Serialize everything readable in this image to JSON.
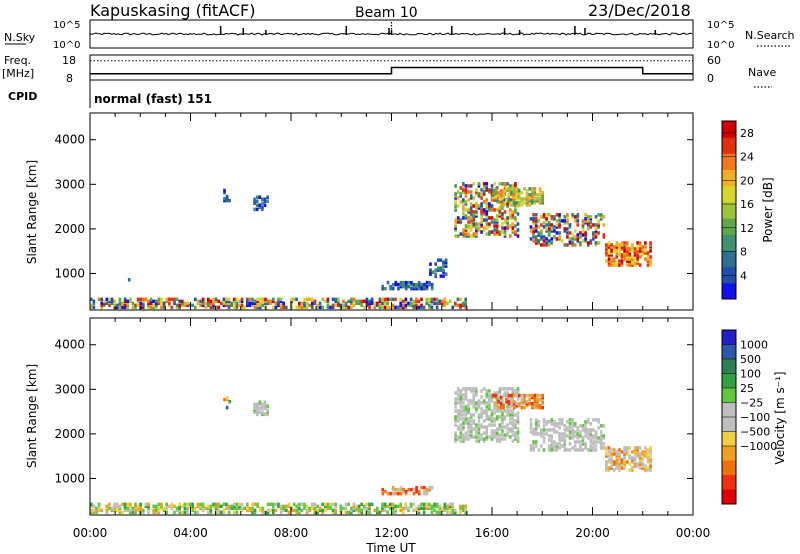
{
  "header": {
    "station": "Kapuskasing (fitACF)",
    "beam": "Beam 10",
    "date": "23/Dec/2018"
  },
  "status_panels": {
    "nsky_label": "N.Sky",
    "nsky_ticks": [
      "10^5",
      "10^0"
    ],
    "nsearch_label": "N.Search",
    "nsearch_ticks": [
      "10^5",
      "10^0"
    ],
    "freq_label": "Freq.",
    "freq_unit": "[MHz]",
    "freq_ticks": [
      "18",
      "8"
    ],
    "nave_label": "Nave",
    "nave_ticks": [
      "60",
      "0"
    ],
    "cpid_label": "CPID",
    "cpid_value": "normal (fast) 151",
    "freq_step_times_h": [
      0,
      12,
      22,
      24
    ],
    "freq_levels_mhz": [
      10.5,
      13,
      10.5
    ],
    "nave_dotted_level": 46,
    "nsky_spike_times_h": [
      5.2,
      6.1,
      7.0,
      10.2,
      11.9,
      12.0,
      14.4,
      16.5,
      17.1,
      19.3,
      19.7,
      22.5
    ]
  },
  "chart_data": [
    {
      "type": "heatmap",
      "name": "power",
      "xlabel": "Time UT",
      "ylabel": "Slant Range [km]",
      "x_ticks": [
        "00:00",
        "04:00",
        "08:00",
        "12:00",
        "16:00",
        "20:00",
        "00:00"
      ],
      "xlim_h": [
        0,
        24
      ],
      "y_ticks": [
        1000,
        2000,
        3000,
        4000
      ],
      "ylim_km": [
        180,
        4600
      ],
      "colorbar_label": "Power [dB]",
      "colorbar_ticks": [
        "4",
        "8",
        "12",
        "16",
        "20",
        "24",
        "28"
      ],
      "colorbar_range": [
        0,
        30
      ],
      "colors": [
        "#1010e8",
        "#1f4fa8",
        "#2f6f8f",
        "#3f8f70",
        "#5fa84a",
        "#9fc43a",
        "#d8d62a",
        "#f0b020",
        "#f07818",
        "#e03010",
        "#d00000"
      ],
      "echo_regions": [
        {
          "t": [
            0,
            15
          ],
          "r": [
            200,
            420
          ],
          "level": "mixed",
          "density": 0.55
        },
        {
          "t": [
            1.3,
            1.6
          ],
          "r": [
            820,
            900
          ],
          "level": "low",
          "density": 0.5
        },
        {
          "t": [
            11.6,
            13.6
          ],
          "r": [
            620,
            760
          ],
          "level": "low",
          "density": 0.5
        },
        {
          "t": [
            13.5,
            14.2
          ],
          "r": [
            900,
            1300
          ],
          "level": "low",
          "density": 0.4
        },
        {
          "t": [
            5.3,
            5.6
          ],
          "r": [
            2550,
            2850
          ],
          "level": "low",
          "density": 0.5
        },
        {
          "t": [
            6.5,
            7.1
          ],
          "r": [
            2400,
            2700
          ],
          "level": "low",
          "density": 0.5
        },
        {
          "t": [
            14.5,
            17.0
          ],
          "r": [
            1800,
            3000
          ],
          "level": "mixed",
          "density": 0.45
        },
        {
          "t": [
            16.0,
            18.0
          ],
          "r": [
            2500,
            2900
          ],
          "level": "mid",
          "density": 0.55
        },
        {
          "t": [
            17.5,
            20.5
          ],
          "r": [
            1600,
            2300
          ],
          "level": "mixed",
          "density": 0.4
        },
        {
          "t": [
            20.5,
            22.3
          ],
          "r": [
            1150,
            1650
          ],
          "level": "high",
          "density": 0.65
        }
      ]
    },
    {
      "type": "heatmap",
      "name": "velocity",
      "xlabel": "Time UT",
      "ylabel": "Slant Range [km]",
      "x_ticks": [
        "00:00",
        "04:00",
        "08:00",
        "12:00",
        "16:00",
        "20:00",
        "00:00"
      ],
      "xlim_h": [
        0,
        24
      ],
      "y_ticks": [
        1000,
        2000,
        3000,
        4000
      ],
      "ylim_km": [
        180,
        4600
      ],
      "colorbar_label": "Velocity [m s⁻¹]",
      "colorbar_ticks": [
        "1000",
        "500",
        "100",
        "25",
        "−25",
        "−100",
        "−500",
        "−1000"
      ],
      "colors": [
        "#2020c8",
        "#2a5aa8",
        "#2f8050",
        "#30a040",
        "#60c840",
        "#bebebe",
        "#bebebe",
        "#f0d040",
        "#f0a020",
        "#f07010",
        "#f03010",
        "#e00000"
      ],
      "echo_regions": [
        {
          "t": [
            0,
            15
          ],
          "r": [
            200,
            400
          ],
          "level": "low-pos",
          "density": 0.55
        },
        {
          "t": [
            11.6,
            13.6
          ],
          "r": [
            620,
            760
          ],
          "level": "neg",
          "density": 0.5
        },
        {
          "t": [
            5.3,
            5.6
          ],
          "r": [
            2550,
            2850
          ],
          "level": "mixed",
          "density": 0.4
        },
        {
          "t": [
            6.5,
            7.1
          ],
          "r": [
            2400,
            2700
          ],
          "level": "grey",
          "density": 0.5
        },
        {
          "t": [
            14.5,
            17.0
          ],
          "r": [
            1800,
            3000
          ],
          "level": "grey",
          "density": 0.5
        },
        {
          "t": [
            16.0,
            18.0
          ],
          "r": [
            2550,
            2850
          ],
          "level": "neg",
          "density": 0.55
        },
        {
          "t": [
            17.5,
            20.5
          ],
          "r": [
            1600,
            2300
          ],
          "level": "grey",
          "density": 0.45
        },
        {
          "t": [
            20.5,
            22.3
          ],
          "r": [
            1150,
            1650
          ],
          "level": "neg-grey",
          "density": 0.6
        }
      ]
    }
  ]
}
